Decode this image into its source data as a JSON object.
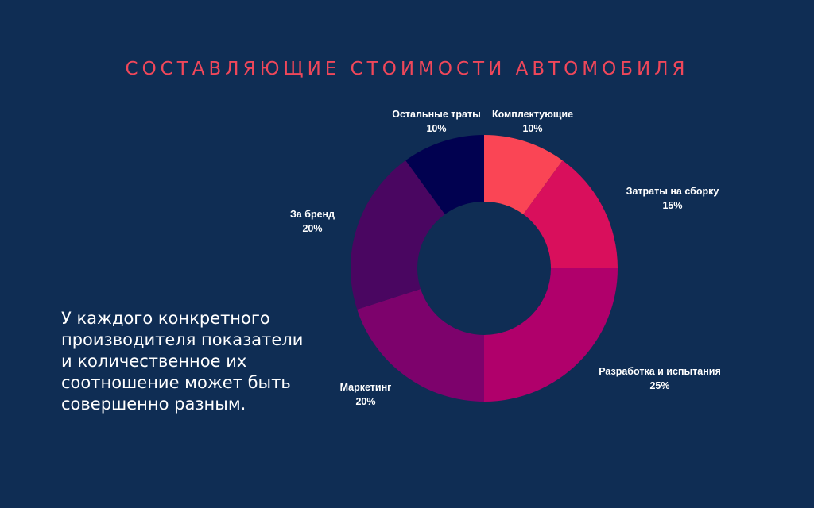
{
  "chart_data": {
    "type": "pie",
    "title": "СОСТАВЛЯЮЩИЕ СТОИМОСТИ АВТОМОБИЛЯ",
    "categories": [
      "Комплектующие",
      "Затраты на сборку",
      "Разработка и испытания",
      "Маркетинг",
      "За бренд",
      "Остальные траты"
    ],
    "values": [
      10,
      15,
      25,
      20,
      20,
      10
    ],
    "value_labels": [
      "10%",
      "15%",
      "25%",
      "20%",
      "20%",
      "10%"
    ],
    "colors": [
      "#fa4555",
      "#d90f5c",
      "#b0006b",
      "#7d026c",
      "#4a0661",
      "#010150"
    ],
    "donut": true,
    "legend": "none"
  },
  "note": "У каждого конкретного производителя показатели и количественное их соотношение может быть совершенно разным."
}
